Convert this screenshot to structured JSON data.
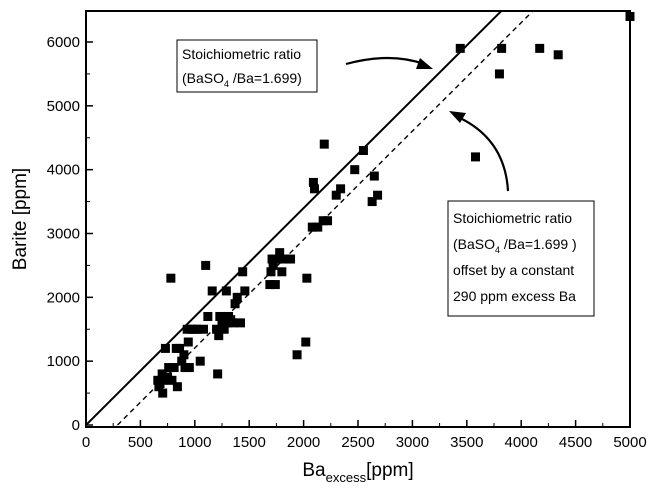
{
  "chart_data": {
    "type": "scatter",
    "title": "",
    "xlabel_main": "Ba",
    "xlabel_sub": "excess",
    "xlabel_unit": "[ppm]",
    "ylabel": "Barite [ppm]",
    "xlim": [
      0,
      5000
    ],
    "ylim": [
      0,
      6500
    ],
    "x_ticks": [
      "0",
      "500",
      "1000",
      "1500",
      "2000",
      "2500",
      "3000",
      "3500",
      "4000",
      "4500",
      "5000"
    ],
    "y_ticks": [
      "0",
      "1000",
      "2000",
      "3000",
      "4000",
      "5000",
      "6000"
    ],
    "grid": false,
    "lines": [
      {
        "style": "solid",
        "slope": 1.699,
        "intercept_x": 0
      },
      {
        "style": "dashed",
        "slope": 1.699,
        "intercept_x": 290
      }
    ],
    "points": [
      [
        660,
        700
      ],
      [
        670,
        600
      ],
      [
        680,
        650
      ],
      [
        700,
        800
      ],
      [
        705,
        500
      ],
      [
        710,
        700
      ],
      [
        730,
        1200
      ],
      [
        750,
        750
      ],
      [
        760,
        900
      ],
      [
        780,
        2300
      ],
      [
        790,
        700
      ],
      [
        810,
        900
      ],
      [
        830,
        1200
      ],
      [
        840,
        600
      ],
      [
        860,
        1200
      ],
      [
        880,
        1000
      ],
      [
        900,
        1100
      ],
      [
        910,
        900
      ],
      [
        930,
        1500
      ],
      [
        940,
        1300
      ],
      [
        950,
        900
      ],
      [
        970,
        1500
      ],
      [
        1000,
        1500
      ],
      [
        1020,
        1500
      ],
      [
        1050,
        1000
      ],
      [
        1080,
        1500
      ],
      [
        1100,
        2500
      ],
      [
        1120,
        1700
      ],
      [
        1160,
        2100
      ],
      [
        1200,
        1500
      ],
      [
        1210,
        800
      ],
      [
        1220,
        1400
      ],
      [
        1230,
        1700
      ],
      [
        1250,
        1600
      ],
      [
        1270,
        1500
      ],
      [
        1280,
        1700
      ],
      [
        1290,
        2100
      ],
      [
        1300,
        1600
      ],
      [
        1310,
        1700
      ],
      [
        1330,
        1650
      ],
      [
        1350,
        1600
      ],
      [
        1370,
        1900
      ],
      [
        1390,
        2000
      ],
      [
        1420,
        1600
      ],
      [
        1440,
        2400
      ],
      [
        1460,
        2100
      ],
      [
        1690,
        2200
      ],
      [
        1700,
        2400
      ],
      [
        1710,
        2600
      ],
      [
        1720,
        2500
      ],
      [
        1740,
        2200
      ],
      [
        1760,
        2600
      ],
      [
        1780,
        2700
      ],
      [
        1800,
        2400
      ],
      [
        1830,
        2600
      ],
      [
        1880,
        2600
      ],
      [
        1940,
        1100
      ],
      [
        2020,
        1300
      ],
      [
        2030,
        2300
      ],
      [
        2080,
        3100
      ],
      [
        2090,
        3800
      ],
      [
        2100,
        3700
      ],
      [
        2130,
        3100
      ],
      [
        2180,
        3200
      ],
      [
        2190,
        4400
      ],
      [
        2220,
        3200
      ],
      [
        2300,
        3600
      ],
      [
        2340,
        3700
      ],
      [
        2470,
        4000
      ],
      [
        2550,
        4300
      ],
      [
        2630,
        3500
      ],
      [
        2650,
        3900
      ],
      [
        2680,
        3600
      ],
      [
        3440,
        5900
      ],
      [
        3580,
        4200
      ],
      [
        3800,
        5500
      ],
      [
        3820,
        5900
      ],
      [
        4170,
        5900
      ],
      [
        4340,
        5800
      ],
      [
        5000,
        6400
      ]
    ],
    "annotations": [
      {
        "id": "annotation-solid",
        "line1": "Stoichiometric ratio",
        "line2_a": "(BaSO",
        "line2_sub": "4",
        "line2_b": " /Ba=1.699)"
      },
      {
        "id": "annotation-dashed",
        "line1": "Stoichiometric ratio",
        "line2_a": "(BaSO",
        "line2_sub": "4",
        "line2_b": " /Ba=1.699 )",
        "line3": "offset by a constant",
        "line4": "290 ppm excess Ba"
      }
    ]
  }
}
